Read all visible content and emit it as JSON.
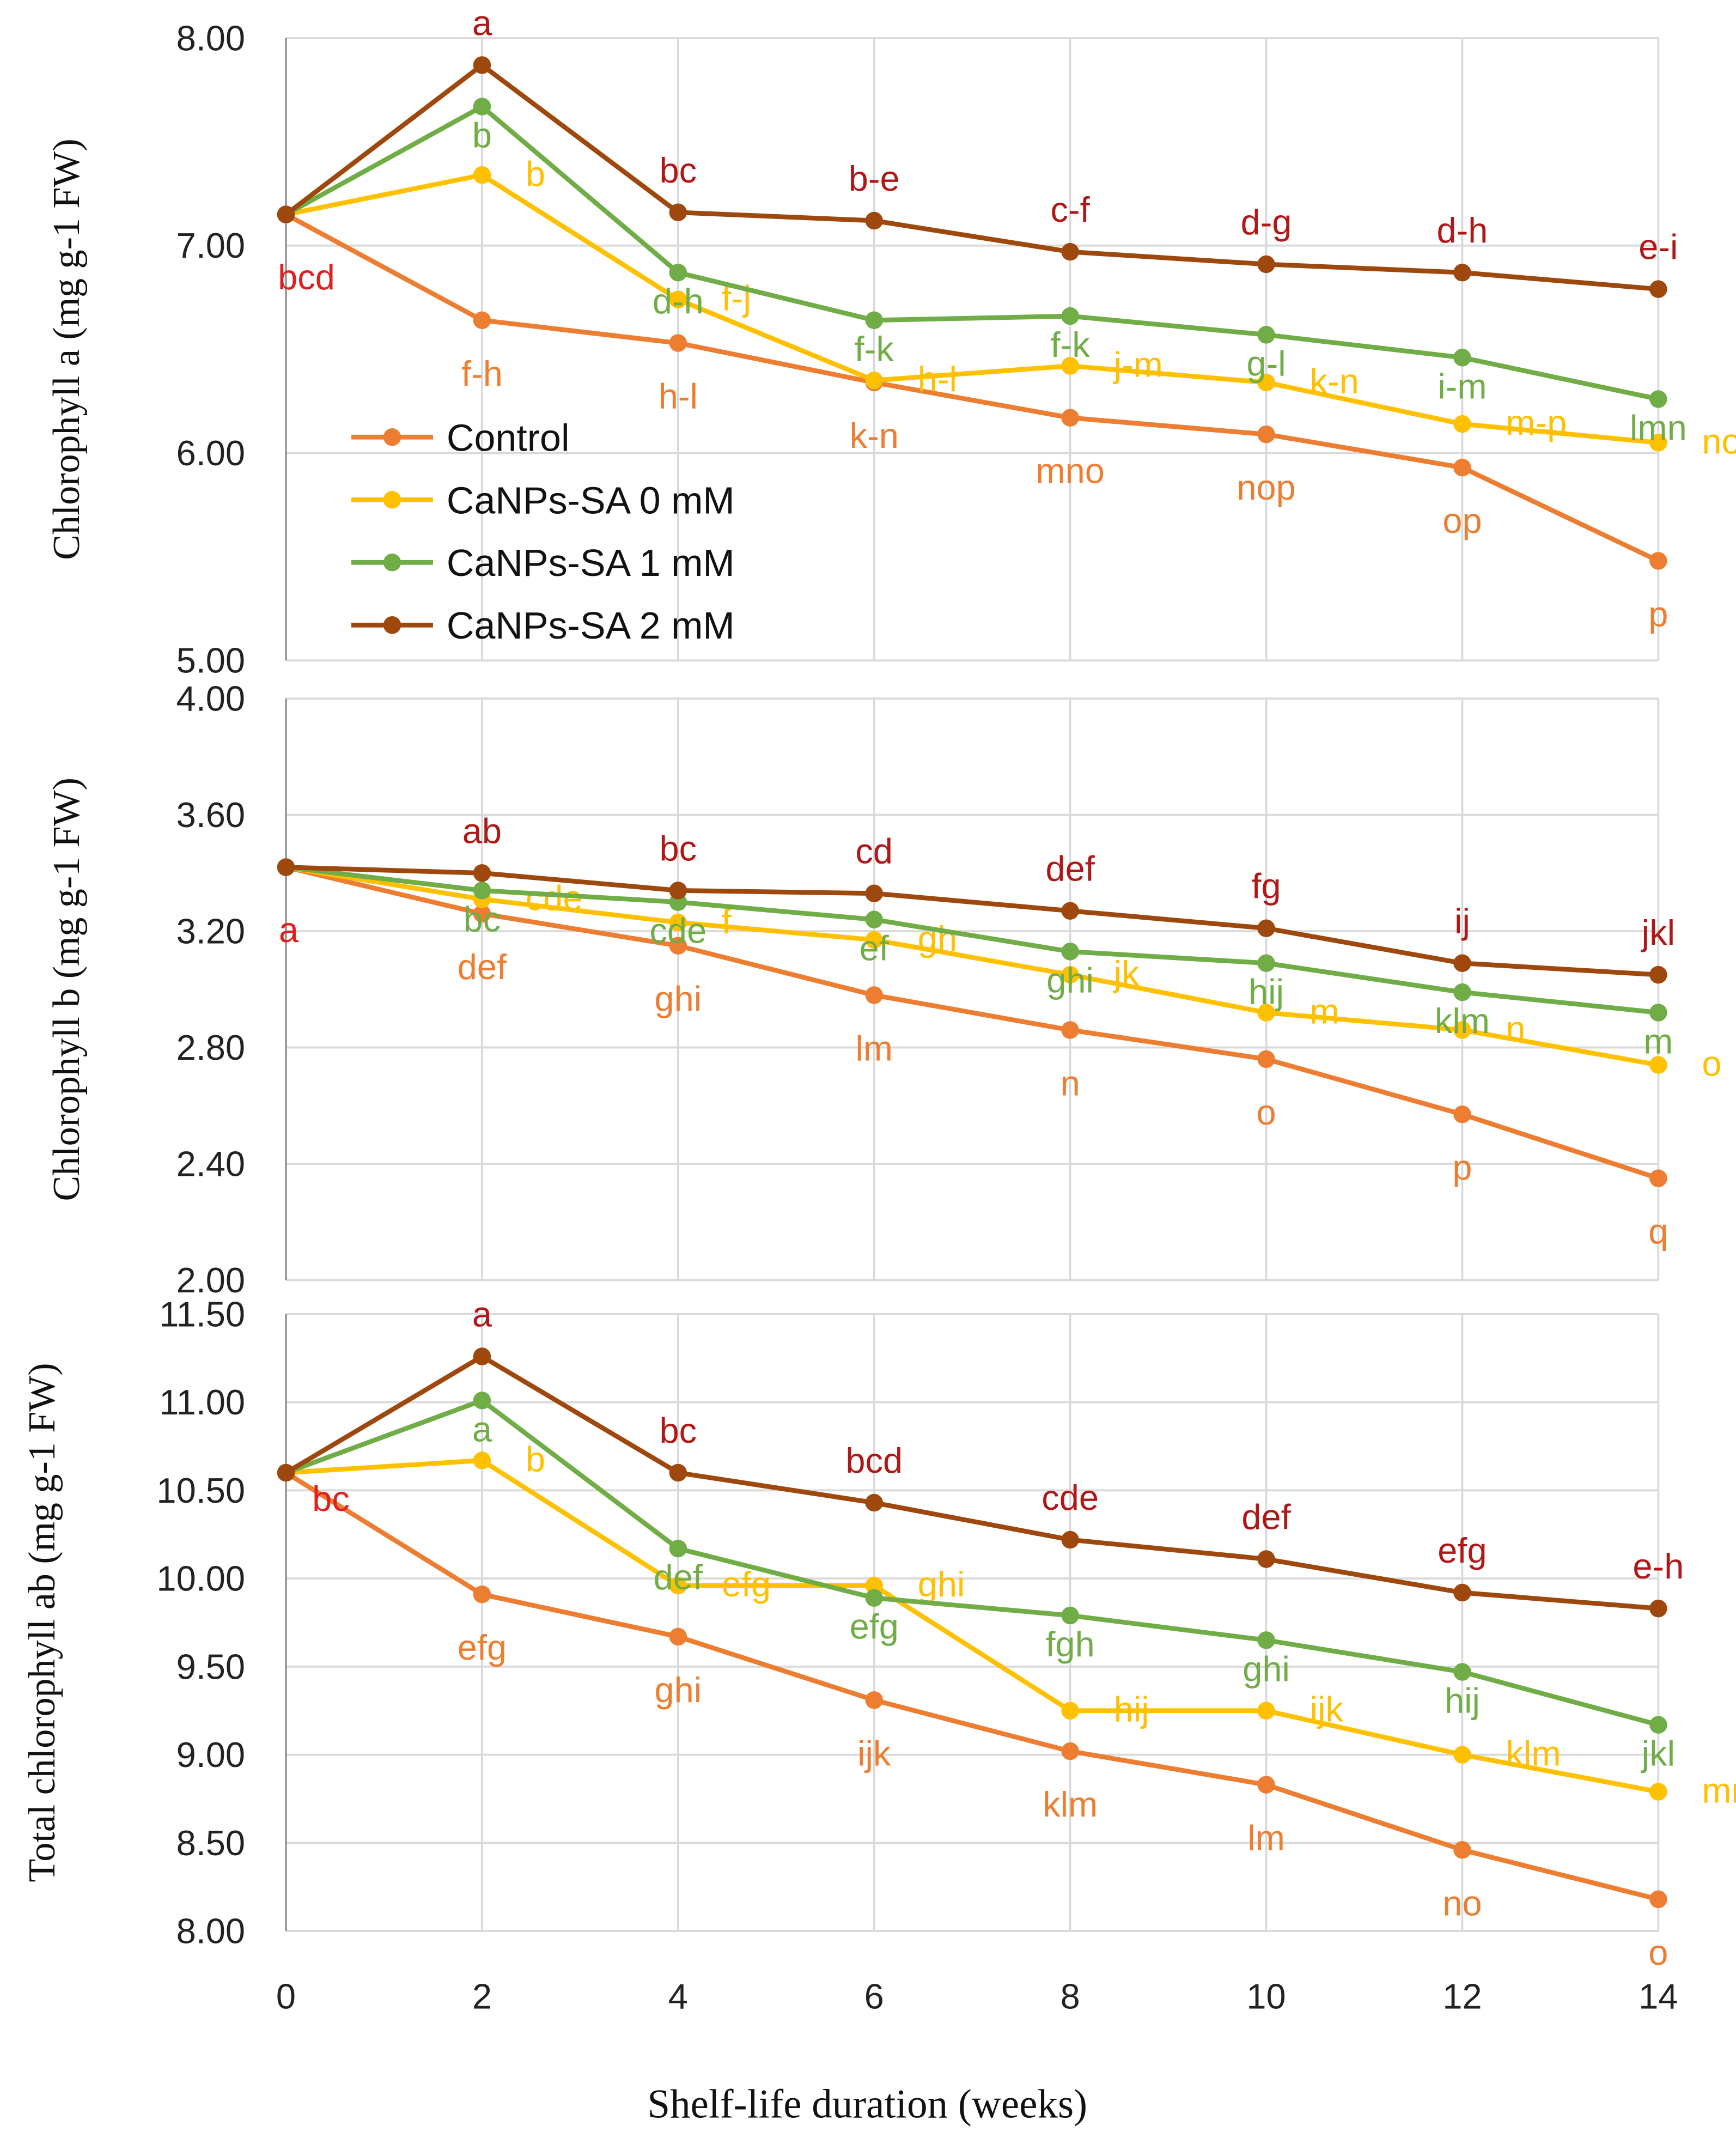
{
  "chart_data": [
    {
      "type": "line",
      "ylabel": "Chlorophyll a  (mg g-1 FW)",
      "ylim": [
        5.0,
        8.0
      ],
      "yticks": [
        "5.00",
        "6.00",
        "7.00",
        "8.00"
      ],
      "x": [
        0,
        2,
        4,
        6,
        8,
        10,
        12,
        14
      ],
      "start_label": "bcd",
      "series": [
        {
          "name": "Control",
          "values": [
            7.15,
            6.64,
            6.53,
            6.34,
            6.17,
            6.09,
            5.93,
            5.48
          ],
          "letters": [
            "",
            "f-h",
            "h-l",
            "k-n",
            "mno",
            "nop",
            "op",
            "p"
          ]
        },
        {
          "name": "CaNPs-SA 0 mM",
          "values": [
            7.15,
            7.34,
            6.74,
            6.35,
            6.42,
            6.34,
            6.14,
            6.05
          ],
          "letters": [
            "",
            "b",
            "f-j",
            "h-l",
            "j-m",
            "k-n",
            "m-p",
            "nop"
          ]
        },
        {
          "name": "CaNPs-SA 1 mM",
          "values": [
            7.15,
            7.67,
            6.87,
            6.64,
            6.66,
            6.57,
            6.46,
            6.26
          ],
          "letters": [
            "",
            "b",
            "d-h",
            "f-k",
            "f-k",
            "g-l",
            "i-m",
            "lmn"
          ]
        },
        {
          "name": "CaNPs-SA 2 mM",
          "values": [
            7.15,
            7.87,
            7.16,
            7.12,
            6.97,
            6.91,
            6.87,
            6.79
          ],
          "letters": [
            "",
            "a",
            "bc",
            "b-e",
            "c-f",
            "d-g",
            "d-h",
            "e-i"
          ]
        }
      ]
    },
    {
      "type": "line",
      "ylabel": "Chlorophyll b (mg g-1 FW)",
      "ylim": [
        2.0,
        4.0
      ],
      "yticks": [
        "2.00",
        "2.40",
        "2.80",
        "3.20",
        "3.60",
        "4.00"
      ],
      "x": [
        0,
        2,
        4,
        6,
        8,
        10,
        12,
        14
      ],
      "start_label": "a",
      "series": [
        {
          "name": "Control",
          "values": [
            3.42,
            3.26,
            3.15,
            2.98,
            2.86,
            2.76,
            2.57,
            2.35
          ],
          "letters": [
            "",
            "def",
            "ghi",
            "lm",
            "n",
            "o",
            "p",
            "q"
          ]
        },
        {
          "name": "CaNPs-SA 0 mM",
          "values": [
            3.42,
            3.31,
            3.23,
            3.17,
            3.05,
            2.92,
            2.86,
            2.74
          ],
          "letters": [
            "",
            "cde",
            "f",
            "gh",
            "jk",
            "m",
            "n",
            "o"
          ]
        },
        {
          "name": "CaNPs-SA 1 mM",
          "values": [
            3.42,
            3.34,
            3.3,
            3.24,
            3.13,
            3.09,
            2.99,
            2.92
          ],
          "letters": [
            "",
            "bc",
            "cde",
            "ef",
            "ghi",
            "hij",
            "klm",
            "m"
          ]
        },
        {
          "name": "CaNPs-SA 2 mM",
          "values": [
            3.42,
            3.4,
            3.34,
            3.33,
            3.27,
            3.21,
            3.09,
            3.05
          ],
          "letters": [
            "",
            "ab",
            "bc",
            "cd",
            "def",
            "fg",
            "ij",
            "jkl"
          ]
        }
      ]
    },
    {
      "type": "line",
      "ylabel": "Total chlorophyll ab  (mg g-1 FW)",
      "ylim": [
        8.0,
        11.5
      ],
      "yticks": [
        "8.00",
        "8.50",
        "9.00",
        "9.50",
        "10.00",
        "10.50",
        "11.00",
        "11.50"
      ],
      "x": [
        0,
        2,
        4,
        6,
        8,
        10,
        12,
        14
      ],
      "start_label": "bc",
      "series": [
        {
          "name": "Control",
          "values": [
            10.6,
            9.91,
            9.67,
            9.31,
            9.02,
            8.83,
            8.46,
            8.18
          ],
          "letters": [
            "",
            "efg",
            "ghi",
            "ijk",
            "klm",
            "lm",
            "no",
            "o"
          ]
        },
        {
          "name": "CaNPs-SA 0 mM",
          "values": [
            10.6,
            10.67,
            9.96,
            9.96,
            9.25,
            9.25,
            9.0,
            8.79
          ],
          "letters": [
            "",
            "b",
            "efg",
            "ghi",
            "hij",
            "ijk",
            "klm",
            "mn"
          ]
        },
        {
          "name": "CaNPs-SA 1 mM",
          "values": [
            10.6,
            11.01,
            10.17,
            9.89,
            9.79,
            9.65,
            9.47,
            9.17
          ],
          "letters": [
            "",
            "a",
            "def",
            "efg",
            "fgh",
            "ghi",
            "hij",
            "jkl"
          ]
        },
        {
          "name": "CaNPs-SA 2 mM",
          "values": [
            10.6,
            11.26,
            10.6,
            10.43,
            10.22,
            10.11,
            9.92,
            9.83
          ],
          "letters": [
            "",
            "a",
            "bc",
            "bcd",
            "cde",
            "def",
            "efg",
            "e-h"
          ]
        }
      ]
    }
  ],
  "x_ticks": [
    "0",
    "2",
    "4",
    "6",
    "8",
    "10",
    "12",
    "14"
  ],
  "xlabel": "Shelf-life duration (weeks)",
  "legend": [
    "Control",
    "CaNPs-SA 0 mM",
    "CaNPs-SA 1 mM",
    "CaNPs-SA 2 mM"
  ],
  "colors": {
    "Control": "#ED7D31",
    "CaNPs-SA 0 mM": "#FFC000",
    "CaNPs-SA 1 mM": "#70AD47",
    "CaNPs-SA 2 mM": "#9E480E",
    "letters_2mM": "#B01818",
    "start_label": "#E02020"
  }
}
